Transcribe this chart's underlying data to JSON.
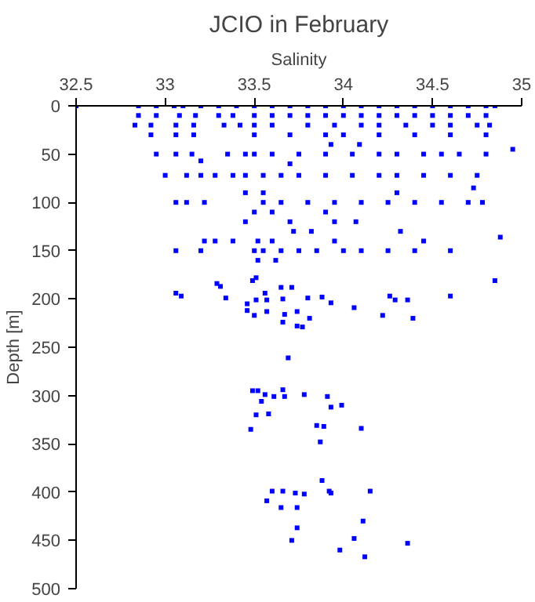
{
  "chart_data": {
    "type": "scatter",
    "title": "JCIO in February",
    "xlabel": "Salinity",
    "ylabel": "Depth [m]",
    "xlim": [
      32.5,
      35
    ],
    "xticks": [
      32.5,
      33,
      33.5,
      34,
      34.5,
      35
    ],
    "ylim": [
      500,
      0
    ],
    "yticks": [
      0,
      50,
      100,
      150,
      200,
      250,
      300,
      350,
      400,
      450,
      500
    ],
    "grid": false,
    "marker": "square",
    "series": [
      {
        "color": "#0000ff",
        "x": [
          32.5,
          32.85,
          32.95,
          33.05,
          33.1,
          33.2,
          33.3,
          33.4,
          33.5,
          33.6,
          33.7,
          33.8,
          33.9,
          34.0,
          34.1,
          34.2,
          34.3,
          34.4,
          34.5,
          34.6,
          34.7,
          34.8,
          34.85,
          32.85,
          32.95,
          33.08,
          33.17,
          33.3,
          33.38,
          33.5,
          33.6,
          33.7,
          33.8,
          33.9,
          34.0,
          34.1,
          34.2,
          34.3,
          34.4,
          34.5,
          34.6,
          34.7,
          34.8,
          32.83,
          32.92,
          33.06,
          33.16,
          33.33,
          33.42,
          33.5,
          33.6,
          33.8,
          33.95,
          34.1,
          34.2,
          34.35,
          34.5,
          34.6,
          34.75,
          34.82,
          32.92,
          33.06,
          33.16,
          33.5,
          33.7,
          33.9,
          34.0,
          34.2,
          34.4,
          34.6,
          34.8,
          33.93,
          34.09,
          32.95,
          33.06,
          33.15,
          33.35,
          33.45,
          33.5,
          33.6,
          33.75,
          33.9,
          34.05,
          34.2,
          34.3,
          34.45,
          34.55,
          34.65,
          34.8,
          34.95,
          33.2,
          33.7,
          33.0,
          33.12,
          33.2,
          33.28,
          33.38,
          33.45,
          33.55,
          33.65,
          33.75,
          33.9,
          34.05,
          34.2,
          34.3,
          34.45,
          34.6,
          34.75,
          34.73,
          33.45,
          33.55,
          34.3,
          33.06,
          33.12,
          33.22,
          33.55,
          33.65,
          33.8,
          33.95,
          34.1,
          34.25,
          34.4,
          34.55,
          34.7,
          34.78,
          33.5,
          33.6,
          33.9,
          33.45,
          33.7,
          33.95,
          34.07,
          33.72,
          33.82,
          34.32,
          33.22,
          33.28,
          33.38,
          33.52,
          33.6,
          33.95,
          34.45,
          34.88,
          33.06,
          33.2,
          33.5,
          33.55,
          33.65,
          33.75,
          33.85,
          34.0,
          34.1,
          34.25,
          34.4,
          34.6,
          33.52,
          33.62,
          34.85,
          33.29,
          33.31,
          33.34,
          33.06,
          33.09,
          33.49,
          33.51,
          33.56,
          33.51,
          33.57,
          33.46,
          33.46,
          33.5,
          33.57,
          33.65,
          33.71,
          33.66,
          33.67,
          33.66,
          33.74,
          33.77,
          33.74,
          33.81,
          33.8,
          33.88,
          33.93,
          34.06,
          34.22,
          34.26,
          34.29,
          34.36,
          34.39,
          34.6,
          33.69,
          33.49,
          33.52,
          33.56,
          33.54,
          33.61,
          33.66,
          33.67,
          33.78,
          33.91,
          33.93,
          33.99,
          33.51,
          33.58,
          33.48,
          33.85,
          33.89,
          34.1,
          33.87,
          33.88,
          33.6,
          33.66,
          33.73,
          33.78,
          33.92,
          33.93,
          34.15,
          33.57,
          33.65,
          33.74,
          34.11,
          33.74,
          33.71,
          34.06,
          34.36,
          33.98,
          34.12
        ],
        "values": [
          0,
          0,
          0,
          0,
          0,
          0,
          0,
          0,
          0,
          0,
          0,
          0,
          0,
          0,
          0,
          0,
          0,
          0,
          0,
          0,
          0,
          0,
          0,
          10,
          10,
          10,
          10,
          10,
          10,
          10,
          10,
          10,
          10,
          10,
          10,
          10,
          10,
          10,
          10,
          10,
          10,
          10,
          10,
          20,
          20,
          20,
          20,
          20,
          20,
          20,
          20,
          20,
          20,
          20,
          20,
          20,
          20,
          20,
          20,
          20,
          30,
          30,
          30,
          30,
          30,
          30,
          30,
          30,
          30,
          30,
          30,
          40,
          40,
          50,
          50,
          50,
          50,
          50,
          50,
          50,
          50,
          50,
          50,
          50,
          50,
          50,
          50,
          50,
          50,
          45,
          57,
          60,
          72,
          72,
          72,
          72,
          72,
          72,
          72,
          72,
          72,
          72,
          72,
          72,
          72,
          72,
          72,
          72,
          85,
          90,
          90,
          90,
          100,
          100,
          100,
          100,
          100,
          100,
          100,
          100,
          100,
          100,
          100,
          100,
          100,
          110,
          110,
          110,
          120,
          120,
          120,
          120,
          130,
          130,
          130,
          140,
          140,
          140,
          140,
          140,
          140,
          140,
          136,
          150,
          150,
          150,
          150,
          150,
          150,
          150,
          150,
          150,
          150,
          150,
          150,
          160,
          160,
          181,
          184,
          187,
          199,
          194,
          197,
          181,
          178,
          194,
          201,
          201,
          205,
          212,
          217,
          213,
          188,
          188,
          200,
          216,
          224,
          228,
          229,
          213,
          220,
          199,
          198,
          204,
          209,
          217,
          197,
          201,
          201,
          220,
          197,
          261,
          295,
          295,
          299,
          306,
          301,
          294,
          301,
          299,
          301,
          312,
          310,
          320,
          319,
          335,
          331,
          332,
          334,
          348,
          388,
          399,
          399,
          401,
          402,
          399,
          401,
          399,
          409,
          416,
          416,
          430,
          437,
          450,
          448,
          453,
          460,
          467
        ]
      }
    ]
  }
}
